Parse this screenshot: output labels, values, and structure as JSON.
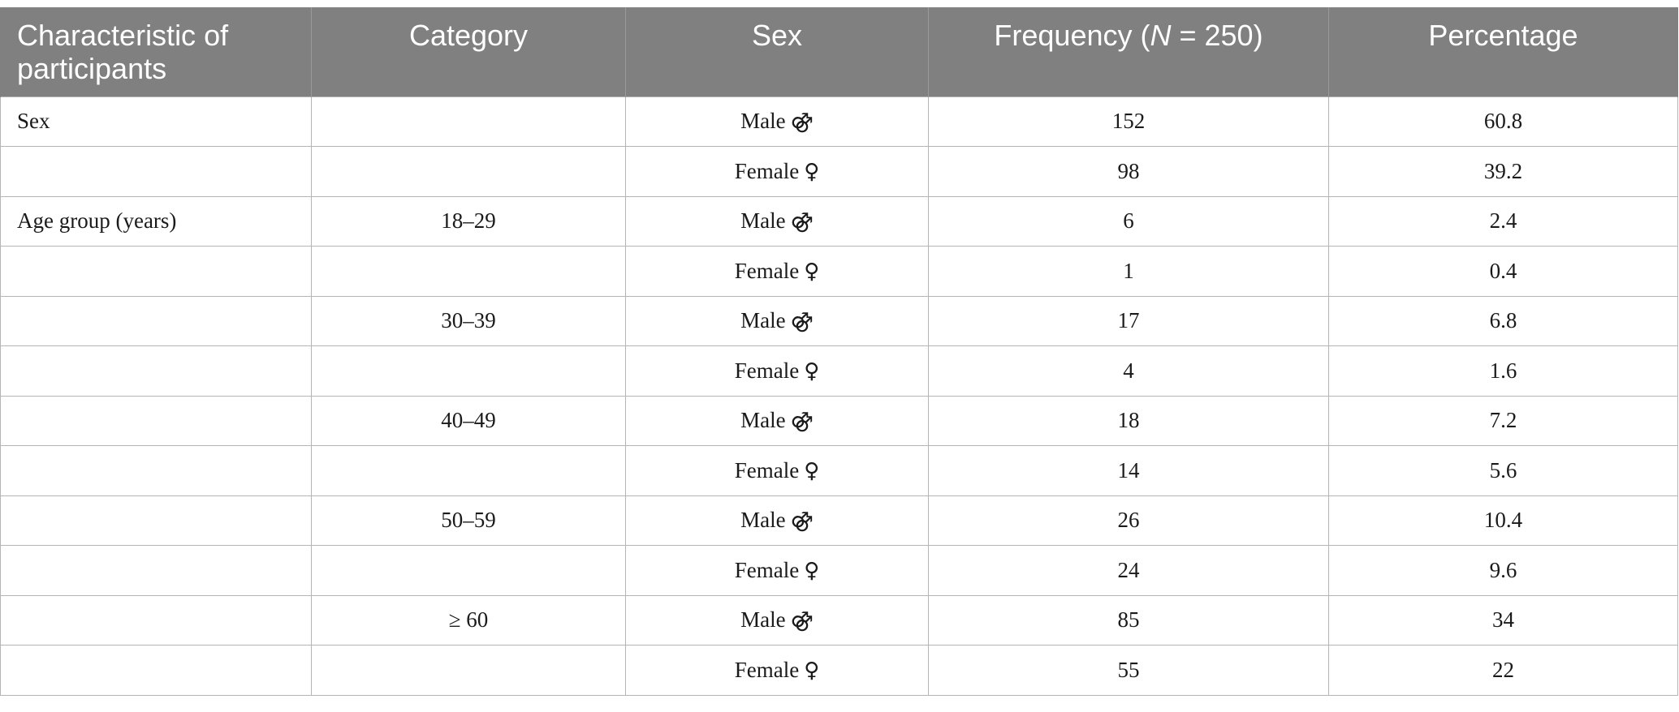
{
  "table": {
    "headers": [
      "Characteristic of participants",
      "Category",
      "Sex",
      "Frequency (N = 250)",
      "Percentage"
    ],
    "header_frequency": {
      "prefix": "Frequency (",
      "n_symbol": "N",
      "suffix": " =  250)"
    },
    "rows": [
      {
        "characteristic": "Sex",
        "category": "",
        "sex": "Male",
        "symbol": "⚣",
        "frequency": "152",
        "percentage": "60.8"
      },
      {
        "characteristic": "",
        "category": "",
        "sex": "Female",
        "symbol": "♀",
        "frequency": "98",
        "percentage": "39.2"
      },
      {
        "characteristic": "Age group (years)",
        "category": "18–29",
        "sex": "Male",
        "symbol": "⚣",
        "frequency": "6",
        "percentage": "2.4"
      },
      {
        "characteristic": "",
        "category": "",
        "sex": "Female",
        "symbol": "♀",
        "frequency": "1",
        "percentage": "0.4"
      },
      {
        "characteristic": "",
        "category": "30–39",
        "sex": "Male",
        "symbol": "⚣",
        "frequency": "17",
        "percentage": "6.8"
      },
      {
        "characteristic": "",
        "category": "",
        "sex": "Female",
        "symbol": "♀",
        "frequency": "4",
        "percentage": "1.6"
      },
      {
        "characteristic": "",
        "category": "40–49",
        "sex": "Male",
        "symbol": "⚣",
        "frequency": "18",
        "percentage": "7.2"
      },
      {
        "characteristic": "",
        "category": "",
        "sex": "Female",
        "symbol": "♀",
        "frequency": "14",
        "percentage": "5.6"
      },
      {
        "characteristic": "",
        "category": "50–59",
        "sex": "Male",
        "symbol": "⚣",
        "frequency": "26",
        "percentage": "10.4"
      },
      {
        "characteristic": "",
        "category": "",
        "sex": "Female",
        "symbol": "♀",
        "frequency": "24",
        "percentage": "9.6"
      },
      {
        "characteristic": "",
        "category": "≥ 60",
        "sex": "Male",
        "symbol": "⚣",
        "frequency": "85",
        "percentage": "34"
      },
      {
        "characteristic": "",
        "category": "",
        "sex": "Female",
        "symbol": "♀",
        "frequency": "55",
        "percentage": "22"
      }
    ]
  },
  "colors": {
    "header_bg": "#808080",
    "header_text": "#ffffff",
    "border": "#b5b5b5"
  }
}
